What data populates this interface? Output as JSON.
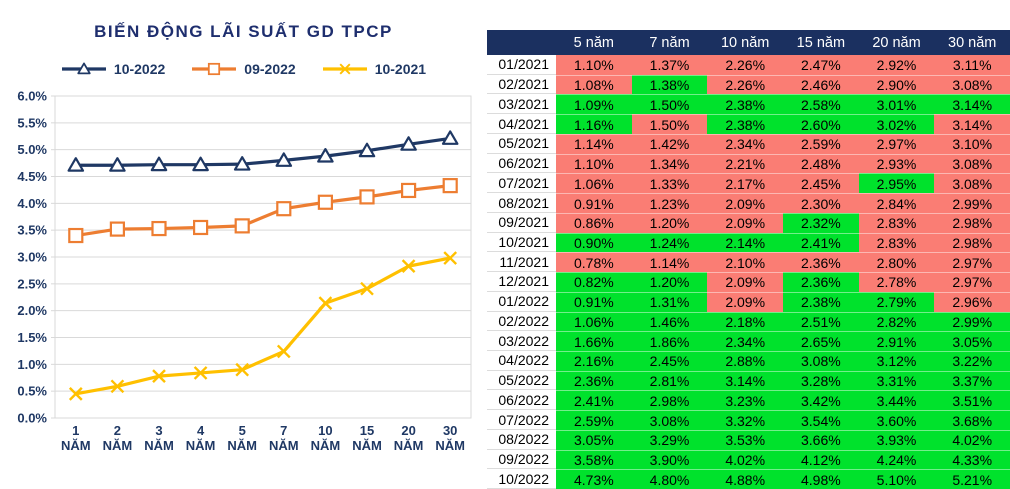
{
  "chart": {
    "title": "BIẾN ĐỘNG LÃI SUẤT GD TPCP",
    "title_color": "#1E2E6E",
    "axis_text_color": "#1F3864",
    "grid_color": "#D9D9D9"
  },
  "chart_data": {
    "type": "line",
    "title": "BIẾN ĐỘNG LÃI SUẤT GD TPCP",
    "categories": [
      "1",
      "2",
      "3",
      "4",
      "5",
      "7",
      "10",
      "15",
      "20",
      "30"
    ],
    "x_unit_label": "NĂM",
    "series": [
      {
        "name": "10-2022",
        "color": "#1F3864",
        "marker": "triangle",
        "values": [
          4.71,
          4.71,
          4.72,
          4.72,
          4.73,
          4.8,
          4.88,
          4.98,
          5.1,
          5.21
        ]
      },
      {
        "name": "09-2022",
        "color": "#ED7D31",
        "marker": "square",
        "values": [
          3.4,
          3.52,
          3.53,
          3.55,
          3.58,
          3.9,
          4.02,
          4.12,
          4.24,
          4.33
        ]
      },
      {
        "name": "10-2021",
        "color": "#FFC000",
        "marker": "x",
        "values": [
          0.45,
          0.59,
          0.78,
          0.84,
          0.9,
          1.24,
          2.14,
          2.41,
          2.83,
          2.98
        ]
      }
    ],
    "ylim": [
      0,
      6
    ],
    "ytick_step": 0.5,
    "ytick_format": "percent_1dp",
    "grid": true,
    "legend_position": "top"
  },
  "table": {
    "header_bg": "#1B3060",
    "header_text_color": "#FFFFFF",
    "palette": {
      "r": "#FA7D74",
      "g": "#00E22C"
    },
    "columns": [
      "5 năm",
      "7 năm",
      "10 năm",
      "15 năm",
      "20 năm",
      "30 năm"
    ],
    "rows": [
      {
        "date": "01/2021",
        "values": [
          "1.10%",
          "1.37%",
          "2.26%",
          "2.47%",
          "2.92%",
          "3.11%"
        ],
        "colors": [
          "r",
          "r",
          "r",
          "r",
          "r",
          "r"
        ]
      },
      {
        "date": "02/2021",
        "values": [
          "1.08%",
          "1.38%",
          "2.26%",
          "2.46%",
          "2.90%",
          "3.08%"
        ],
        "colors": [
          "r",
          "g",
          "r",
          "r",
          "r",
          "r"
        ]
      },
      {
        "date": "03/2021",
        "values": [
          "1.09%",
          "1.50%",
          "2.38%",
          "2.58%",
          "3.01%",
          "3.14%"
        ],
        "colors": [
          "g",
          "g",
          "g",
          "g",
          "g",
          "g"
        ]
      },
      {
        "date": "04/2021",
        "values": [
          "1.16%",
          "1.50%",
          "2.38%",
          "2.60%",
          "3.02%",
          "3.14%"
        ],
        "colors": [
          "g",
          "r",
          "g",
          "g",
          "g",
          "r"
        ]
      },
      {
        "date": "05/2021",
        "values": [
          "1.14%",
          "1.42%",
          "2.34%",
          "2.59%",
          "2.97%",
          "3.10%"
        ],
        "colors": [
          "r",
          "r",
          "r",
          "r",
          "r",
          "r"
        ]
      },
      {
        "date": "06/2021",
        "values": [
          "1.10%",
          "1.34%",
          "2.21%",
          "2.48%",
          "2.93%",
          "3.08%"
        ],
        "colors": [
          "r",
          "r",
          "r",
          "r",
          "r",
          "r"
        ]
      },
      {
        "date": "07/2021",
        "values": [
          "1.06%",
          "1.33%",
          "2.17%",
          "2.45%",
          "2.95%",
          "3.08%"
        ],
        "colors": [
          "r",
          "r",
          "r",
          "r",
          "g",
          "r"
        ]
      },
      {
        "date": "08/2021",
        "values": [
          "0.91%",
          "1.23%",
          "2.09%",
          "2.30%",
          "2.84%",
          "2.99%"
        ],
        "colors": [
          "r",
          "r",
          "r",
          "r",
          "r",
          "r"
        ]
      },
      {
        "date": "09/2021",
        "values": [
          "0.86%",
          "1.20%",
          "2.09%",
          "2.32%",
          "2.83%",
          "2.98%"
        ],
        "colors": [
          "r",
          "r",
          "r",
          "g",
          "r",
          "r"
        ]
      },
      {
        "date": "10/2021",
        "values": [
          "0.90%",
          "1.24%",
          "2.14%",
          "2.41%",
          "2.83%",
          "2.98%"
        ],
        "colors": [
          "g",
          "g",
          "g",
          "g",
          "r",
          "r"
        ]
      },
      {
        "date": "11/2021",
        "values": [
          "0.78%",
          "1.14%",
          "2.10%",
          "2.36%",
          "2.80%",
          "2.97%"
        ],
        "colors": [
          "r",
          "r",
          "r",
          "r",
          "r",
          "r"
        ]
      },
      {
        "date": "12/2021",
        "values": [
          "0.82%",
          "1.20%",
          "2.09%",
          "2.36%",
          "2.78%",
          "2.97%"
        ],
        "colors": [
          "g",
          "g",
          "r",
          "g",
          "r",
          "r"
        ]
      },
      {
        "date": "01/2022",
        "values": [
          "0.91%",
          "1.31%",
          "2.09%",
          "2.38%",
          "2.79%",
          "2.96%"
        ],
        "colors": [
          "g",
          "g",
          "r",
          "g",
          "g",
          "r"
        ]
      },
      {
        "date": "02/2022",
        "values": [
          "1.06%",
          "1.46%",
          "2.18%",
          "2.51%",
          "2.82%",
          "2.99%"
        ],
        "colors": [
          "g",
          "g",
          "g",
          "g",
          "g",
          "g"
        ]
      },
      {
        "date": "03/2022",
        "values": [
          "1.66%",
          "1.86%",
          "2.34%",
          "2.65%",
          "2.91%",
          "3.05%"
        ],
        "colors": [
          "g",
          "g",
          "g",
          "g",
          "g",
          "g"
        ]
      },
      {
        "date": "04/2022",
        "values": [
          "2.16%",
          "2.45%",
          "2.88%",
          "3.08%",
          "3.12%",
          "3.22%"
        ],
        "colors": [
          "g",
          "g",
          "g",
          "g",
          "g",
          "g"
        ]
      },
      {
        "date": "05/2022",
        "values": [
          "2.36%",
          "2.81%",
          "3.14%",
          "3.28%",
          "3.31%",
          "3.37%"
        ],
        "colors": [
          "g",
          "g",
          "g",
          "g",
          "g",
          "g"
        ]
      },
      {
        "date": "06/2022",
        "values": [
          "2.41%",
          "2.98%",
          "3.23%",
          "3.42%",
          "3.44%",
          "3.51%"
        ],
        "colors": [
          "g",
          "g",
          "g",
          "g",
          "g",
          "g"
        ]
      },
      {
        "date": "07/2022",
        "values": [
          "2.59%",
          "3.08%",
          "3.32%",
          "3.54%",
          "3.60%",
          "3.68%"
        ],
        "colors": [
          "g",
          "g",
          "g",
          "g",
          "g",
          "g"
        ]
      },
      {
        "date": "08/2022",
        "values": [
          "3.05%",
          "3.29%",
          "3.53%",
          "3.66%",
          "3.93%",
          "4.02%"
        ],
        "colors": [
          "g",
          "g",
          "g",
          "g",
          "g",
          "g"
        ]
      },
      {
        "date": "09/2022",
        "values": [
          "3.58%",
          "3.90%",
          "4.02%",
          "4.12%",
          "4.24%",
          "4.33%"
        ],
        "colors": [
          "g",
          "g",
          "g",
          "g",
          "g",
          "g"
        ]
      },
      {
        "date": "10/2022",
        "values": [
          "4.73%",
          "4.80%",
          "4.88%",
          "4.98%",
          "5.10%",
          "5.21%"
        ],
        "colors": [
          "g",
          "g",
          "g",
          "g",
          "g",
          "g"
        ]
      }
    ]
  }
}
